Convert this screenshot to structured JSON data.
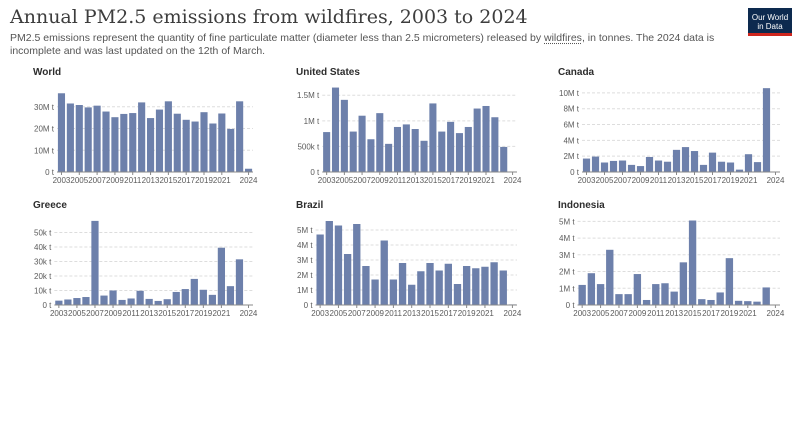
{
  "header": {
    "title": "Annual PM2.5 emissions from wildfires, 2003 to 2024",
    "subtitle_before": "PM2.5 emissions represent the quantity of fine particulate matter (diameter less than 2.5 micrometers) released by ",
    "subtitle_link": "wildfires",
    "subtitle_after": ", in tonnes. The 2024 data is incomplete and was last updated on the 12th of March.",
    "logo_line1": "Our World",
    "logo_line2": "in Data"
  },
  "colors": {
    "bar": "#6d80ab",
    "grid": "#dddddd",
    "axis": "#888888",
    "text": "#5b5b5b",
    "title": "#2d2d2d"
  },
  "chart_data": [
    {
      "type": "bar",
      "title": "World",
      "x": [
        2003,
        2004,
        2005,
        2006,
        2007,
        2008,
        2009,
        2010,
        2011,
        2012,
        2013,
        2014,
        2015,
        2016,
        2017,
        2018,
        2019,
        2020,
        2021,
        2022,
        2023,
        2024
      ],
      "values": [
        36200000,
        31500000,
        30800000,
        29700000,
        30500000,
        27800000,
        25200000,
        26700000,
        27100000,
        32000000,
        24800000,
        28700000,
        32500000,
        26800000,
        24000000,
        23200000,
        27500000,
        22300000,
        26900000,
        19800000,
        32500000,
        1500000
      ],
      "ylim": [
        0,
        40000000
      ],
      "yticks": [
        0,
        10000000,
        20000000,
        30000000
      ],
      "ytick_labels": [
        "0 t",
        "10M t",
        "20M t",
        "30M t"
      ],
      "xtick_labels": [
        "2003",
        "2005",
        "2007",
        "2009",
        "2011",
        "2013",
        "2015",
        "2017",
        "2019",
        "2021",
        "2024"
      ]
    },
    {
      "type": "bar",
      "title": "United States",
      "x": [
        2003,
        2004,
        2005,
        2006,
        2007,
        2008,
        2009,
        2010,
        2011,
        2012,
        2013,
        2014,
        2015,
        2016,
        2017,
        2018,
        2019,
        2020,
        2021,
        2022,
        2023,
        2024
      ],
      "values": [
        780000,
        1650000,
        1410000,
        790000,
        1100000,
        640000,
        1150000,
        550000,
        880000,
        930000,
        840000,
        610000,
        1340000,
        790000,
        980000,
        760000,
        880000,
        1240000,
        1290000,
        1070000,
        490000,
        10000
      ],
      "ylim": [
        0,
        1700000
      ],
      "yticks": [
        0,
        500000,
        1000000,
        1500000
      ],
      "ytick_labels": [
        "0 t",
        "500k t",
        "1M t",
        "1.5M t"
      ],
      "xtick_labels": [
        "2003",
        "2005",
        "2007",
        "2009",
        "2011",
        "2013",
        "2015",
        "2017",
        "2019",
        "2021",
        "2024"
      ]
    },
    {
      "type": "bar",
      "title": "Canada",
      "x": [
        2003,
        2004,
        2005,
        2006,
        2007,
        2008,
        2009,
        2010,
        2011,
        2012,
        2013,
        2014,
        2015,
        2016,
        2017,
        2018,
        2019,
        2020,
        2021,
        2022,
        2023,
        2024
      ],
      "values": [
        1700000,
        1950000,
        1200000,
        1400000,
        1450000,
        900000,
        750000,
        1900000,
        1450000,
        1300000,
        2800000,
        3150000,
        2650000,
        900000,
        2450000,
        1300000,
        1200000,
        300000,
        2250000,
        1250000,
        10600000,
        10000
      ],
      "ylim": [
        0,
        11000000
      ],
      "yticks": [
        0,
        2000000,
        4000000,
        6000000,
        8000000,
        10000000
      ],
      "ytick_labels": [
        "0 t",
        "2M t",
        "4M t",
        "6M t",
        "8M t",
        "10M t"
      ],
      "xtick_labels": [
        "2003",
        "2005",
        "2007",
        "2009",
        "2011",
        "2013",
        "2015",
        "2017",
        "2019",
        "2021",
        "2024"
      ]
    },
    {
      "type": "bar",
      "title": "Greece",
      "x": [
        2003,
        2004,
        2005,
        2006,
        2007,
        2008,
        2009,
        2010,
        2011,
        2012,
        2013,
        2014,
        2015,
        2016,
        2017,
        2018,
        2019,
        2020,
        2021,
        2022,
        2023,
        2024
      ],
      "values": [
        3000,
        3800,
        4800,
        5500,
        58000,
        6500,
        10000,
        3500,
        4500,
        9800,
        4200,
        2800,
        4000,
        9000,
        11000,
        18000,
        10500,
        7000,
        39500,
        13000,
        31500,
        300
      ],
      "ylim": [
        0,
        60000
      ],
      "yticks": [
        0,
        10000,
        20000,
        30000,
        40000,
        50000
      ],
      "ytick_labels": [
        "0 t",
        "10k t",
        "20k t",
        "30k t",
        "40k t",
        "50k t"
      ],
      "xtick_labels": [
        "2003",
        "2005",
        "2007",
        "2009",
        "2011",
        "2013",
        "2015",
        "2017",
        "2019",
        "2021",
        "2024"
      ]
    },
    {
      "type": "bar",
      "title": "Brazil",
      "x": [
        2003,
        2004,
        2005,
        2006,
        2007,
        2008,
        2009,
        2010,
        2011,
        2012,
        2013,
        2014,
        2015,
        2016,
        2017,
        2018,
        2019,
        2020,
        2021,
        2022,
        2023,
        2024
      ],
      "values": [
        4700000,
        5600000,
        5300000,
        3400000,
        5400000,
        2600000,
        1700000,
        4300000,
        1700000,
        2800000,
        1350000,
        2250000,
        2800000,
        2300000,
        2750000,
        1400000,
        2600000,
        2450000,
        2550000,
        2850000,
        2300000,
        40000
      ],
      "ylim": [
        0,
        5800000
      ],
      "yticks": [
        0,
        1000000,
        2000000,
        3000000,
        4000000,
        5000000
      ],
      "ytick_labels": [
        "0 t",
        "1M t",
        "2M t",
        "3M t",
        "4M t",
        "5M t"
      ],
      "xtick_labels": [
        "2003",
        "2005",
        "2007",
        "2009",
        "2011",
        "2013",
        "2015",
        "2017",
        "2019",
        "2021",
        "2024"
      ]
    },
    {
      "type": "bar",
      "title": "Indonesia",
      "x": [
        2003,
        2004,
        2005,
        2006,
        2007,
        2008,
        2009,
        2010,
        2011,
        2012,
        2013,
        2014,
        2015,
        2016,
        2017,
        2018,
        2019,
        2020,
        2021,
        2022,
        2023,
        2024
      ],
      "values": [
        1200000,
        1900000,
        1250000,
        3300000,
        650000,
        650000,
        1850000,
        300000,
        1250000,
        1300000,
        800000,
        2550000,
        5050000,
        350000,
        300000,
        750000,
        2800000,
        250000,
        230000,
        200000,
        1050000,
        5000
      ],
      "ylim": [
        0,
        5200000
      ],
      "yticks": [
        0,
        1000000,
        2000000,
        3000000,
        4000000,
        5000000
      ],
      "ytick_labels": [
        "0 t",
        "1M t",
        "2M t",
        "3M t",
        "4M t",
        "5M t"
      ],
      "xtick_labels": [
        "2003",
        "2005",
        "2007",
        "2009",
        "2011",
        "2013",
        "2015",
        "2017",
        "2019",
        "2021",
        "2024"
      ]
    }
  ]
}
